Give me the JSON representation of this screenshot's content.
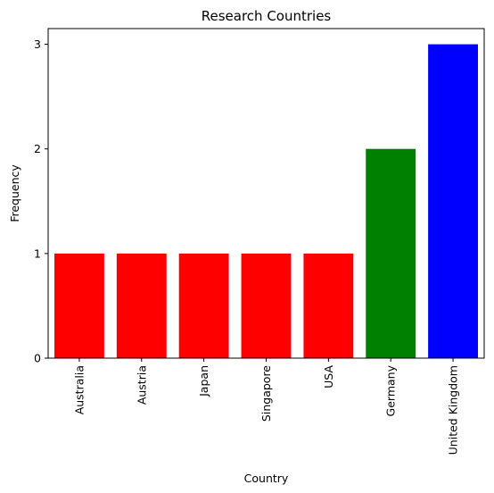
{
  "chart_data": {
    "type": "bar",
    "title": "Research Countries",
    "xlabel": "Country",
    "ylabel": "Frequency",
    "categories": [
      "Australia",
      "Austria",
      "Japan",
      "Singapore",
      "USA",
      "Germany",
      "United Kingdom"
    ],
    "values": [
      1,
      1,
      1,
      1,
      1,
      2,
      3
    ],
    "bar_colors": [
      "#ff0000",
      "#ff0000",
      "#ff0000",
      "#ff0000",
      "#ff0000",
      "#008000",
      "#0000ff"
    ],
    "yticks": [
      "0",
      "1",
      "2",
      "3"
    ],
    "ylim": [
      0,
      3.15
    ],
    "grid": false,
    "legend": "none"
  }
}
